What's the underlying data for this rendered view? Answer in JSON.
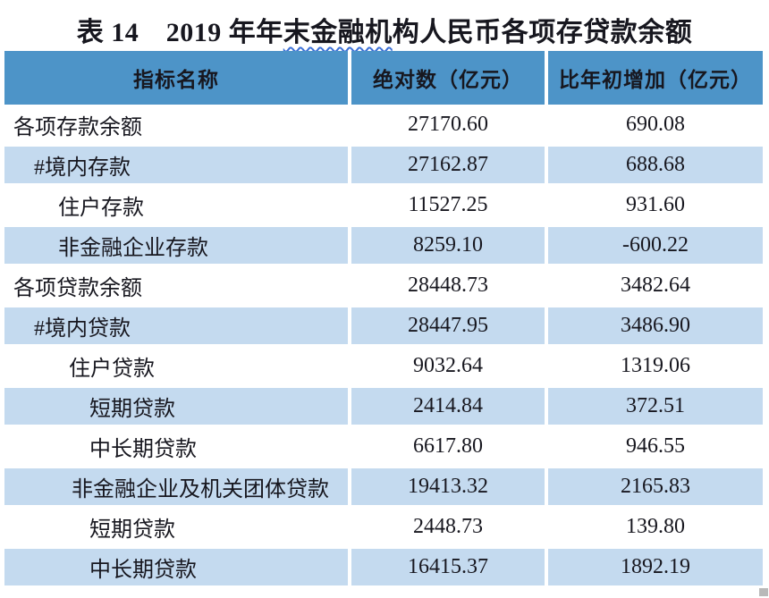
{
  "title": {
    "part1": "表 14　2019 年年",
    "wavy": "末金融机",
    "part2": "构人民币各项存贷款余额"
  },
  "colors": {
    "header_bg": "#4d94c8",
    "band_bg": "#c4daef",
    "text": "#17171f",
    "wavy_underline": "#3b6fd6"
  },
  "table": {
    "columns": [
      "指标名称",
      "绝对数（亿元）",
      "比年初增加（亿元）"
    ],
    "rows": [
      {
        "label": "各项存款余额",
        "abs": "27170.60",
        "change": "690.08",
        "shaded": false,
        "indent": 10
      },
      {
        "label": "#境内存款",
        "abs": "27162.87",
        "change": "688.68",
        "shaded": true,
        "indent": 33
      },
      {
        "label": "住户存款",
        "abs": "11527.25",
        "change": "931.60",
        "shaded": false,
        "indent": 60
      },
      {
        "label": "非金融企业存款",
        "abs": "8259.10",
        "change": "-600.22",
        "shaded": true,
        "indent": 60
      },
      {
        "label": "各项贷款余额",
        "abs": "28448.73",
        "change": "3482.64",
        "shaded": false,
        "indent": 10
      },
      {
        "label": "#境内贷款",
        "abs": "28447.95",
        "change": "3486.90",
        "shaded": true,
        "indent": 33
      },
      {
        "label": "住户贷款",
        "abs": "9032.64",
        "change": "1319.06",
        "shaded": false,
        "indent": 72
      },
      {
        "label": "短期贷款",
        "abs": "2414.84",
        "change": "372.51",
        "shaded": true,
        "indent": 95
      },
      {
        "label": "中长期贷款",
        "abs": "6617.80",
        "change": "946.55",
        "shaded": false,
        "indent": 95
      },
      {
        "label": "非金融企业及机关团体贷款",
        "abs": "19413.32",
        "change": "2165.83",
        "shaded": true,
        "indent": 75
      },
      {
        "label": "短期贷款",
        "abs": "2448.73",
        "change": "139.80",
        "shaded": false,
        "indent": 95
      },
      {
        "label": "中长期贷款",
        "abs": "16415.37",
        "change": "1892.19",
        "shaded": true,
        "indent": 95
      }
    ]
  }
}
